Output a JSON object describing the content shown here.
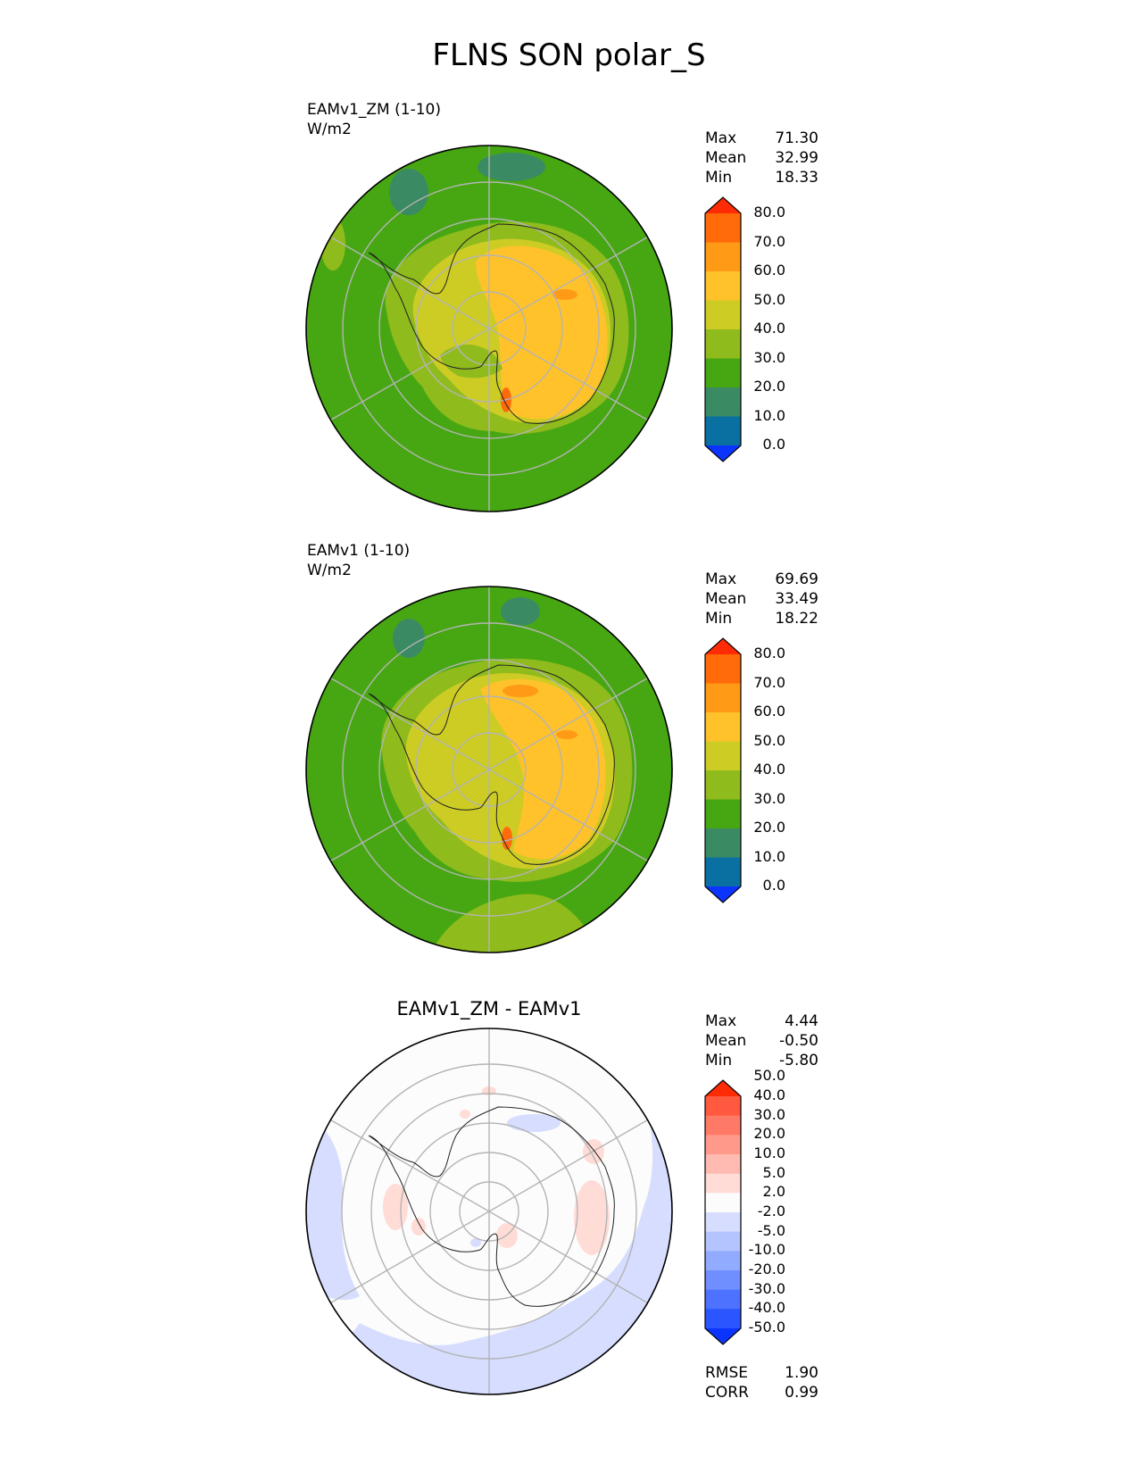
{
  "title": "FLNS SON polar_S",
  "colors": {
    "field_scale": [
      "#0c34ff",
      "#0a6fa1",
      "#3a8a64",
      "#47a713",
      "#8fbb1c",
      "#cccc25",
      "#ffc22a",
      "#ff9a16",
      "#ff6a0a",
      "#ff2b05"
    ],
    "diff_scale": [
      "#0c34ff",
      "#2b55ff",
      "#4d72ff",
      "#6f8eff",
      "#91abff",
      "#b3c4ff",
      "#d6ddff",
      "#fcfcfc",
      "#ffdcd6",
      "#ffbab1",
      "#ff9a8b",
      "#ff7a66",
      "#ff5940",
      "#ff2b05"
    ],
    "grid": "#b4b4b4",
    "coast": "#222222"
  },
  "panels": [
    {
      "title_line1": "EAMv1_ZM (1-10)",
      "title_line2": "W/m2",
      "stats": [
        {
          "label": "Max",
          "value": "71.30"
        },
        {
          "label": "Mean",
          "value": "32.99"
        },
        {
          "label": "Min",
          "value": "18.33"
        }
      ]
    },
    {
      "title_line1": "EAMv1 (1-10)",
      "title_line2": "W/m2",
      "stats": [
        {
          "label": "Max",
          "value": "69.69"
        },
        {
          "label": "Mean",
          "value": "33.49"
        },
        {
          "label": "Min",
          "value": "18.22"
        }
      ]
    },
    {
      "title": "EAMv1_ZM - EAMv1",
      "stats": [
        {
          "label": "Max",
          "value": "4.44"
        },
        {
          "label": "Mean",
          "value": "-0.50"
        },
        {
          "label": "Min",
          "value": "-5.80"
        }
      ],
      "metrics": [
        {
          "label": "RMSE",
          "value": "1.90"
        },
        {
          "label": "CORR",
          "value": "0.99"
        }
      ]
    }
  ],
  "chart_data": [
    {
      "type": "heatmap",
      "projection": "south polar stereographic",
      "title": "EAMv1_ZM (1-10)",
      "units": "W/m2",
      "colorbar_levels": [
        0,
        10,
        20,
        30,
        40,
        50,
        60,
        70,
        80
      ],
      "colorbar_tick_labels": [
        "0.0",
        "10.0",
        "20.0",
        "30.0",
        "40.0",
        "50.0",
        "60.0",
        "70.0",
        "80.0"
      ],
      "extend": "both",
      "max": 71.3,
      "mean": 32.99,
      "min": 18.33
    },
    {
      "type": "heatmap",
      "projection": "south polar stereographic",
      "title": "EAMv1 (1-10)",
      "units": "W/m2",
      "colorbar_levels": [
        0,
        10,
        20,
        30,
        40,
        50,
        60,
        70,
        80
      ],
      "colorbar_tick_labels": [
        "0.0",
        "10.0",
        "20.0",
        "30.0",
        "40.0",
        "50.0",
        "60.0",
        "70.0",
        "80.0"
      ],
      "extend": "both",
      "max": 69.69,
      "mean": 33.49,
      "min": 18.22
    },
    {
      "type": "heatmap",
      "projection": "south polar stereographic",
      "title": "EAMv1_ZM - EAMv1",
      "colorbar_levels": [
        -50,
        -40,
        -30,
        -20,
        -10,
        -5,
        -2,
        2,
        5,
        10,
        20,
        30,
        40,
        50
      ],
      "colorbar_tick_labels": [
        "-50.0",
        "-40.0",
        "-30.0",
        "-20.0",
        "-10.0",
        "-5.0",
        "-2.0",
        "2.0",
        "5.0",
        "10.0",
        "20.0",
        "30.0",
        "40.0",
        "50.0"
      ],
      "extend": "both",
      "max": 4.44,
      "mean": -0.5,
      "min": -5.8,
      "rmse": 1.9,
      "corr": 0.99
    }
  ]
}
